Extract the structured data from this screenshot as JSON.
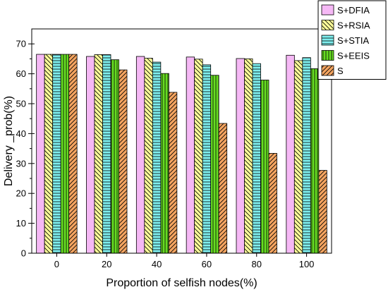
{
  "chart_data": {
    "type": "bar",
    "xlabel": "Proportion of selfish nodes(%)",
    "ylabel": "Delivery _prob(%)",
    "categories": [
      "0",
      "20",
      "40",
      "60",
      "80",
      "100"
    ],
    "ylim": [
      0,
      75
    ],
    "yticks": [
      0,
      10,
      20,
      30,
      40,
      50,
      60,
      70
    ],
    "grid": false,
    "legend_position": "top-right",
    "series": [
      {
        "name": "S+DFIA",
        "values": [
          66.5,
          65.8,
          65.8,
          65.6,
          65.1,
          66.2
        ],
        "color": "#f5b8f5",
        "pattern": "solid"
      },
      {
        "name": "S+RSIA",
        "values": [
          66.5,
          66.4,
          65.2,
          64.9,
          65.0,
          64.4
        ],
        "color": "#ffff99",
        "pattern": "diagonal-down"
      },
      {
        "name": "S+STIA",
        "values": [
          66.5,
          66.4,
          63.9,
          63.0,
          63.4,
          65.4
        ],
        "color": "#7ff0f0",
        "pattern": "horizontal"
      },
      {
        "name": "S+EEIS",
        "values": [
          66.5,
          64.7,
          60.1,
          59.5,
          57.9,
          61.7
        ],
        "color": "#66dd22",
        "pattern": "vertical"
      },
      {
        "name": "S",
        "values": [
          66.5,
          61.3,
          53.8,
          43.4,
          33.4,
          27.7
        ],
        "color": "#f4a460",
        "pattern": "diagonal-up"
      }
    ]
  }
}
